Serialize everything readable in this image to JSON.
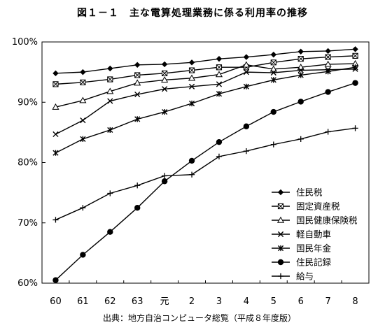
{
  "title": "図１－１　主な電算処理業務に係る利用率の推移",
  "source": "出典：地方自治コンピュータ総覧（平成８年度版）",
  "chart_data": {
    "type": "line",
    "categories": [
      "60",
      "61",
      "62",
      "63",
      "元",
      "2",
      "3",
      "4",
      "5",
      "6",
      "7",
      "8"
    ],
    "yticks": [
      "60%",
      "70%",
      "80%",
      "90%",
      "100%"
    ],
    "ylim": [
      60,
      100
    ],
    "ytick_values": [
      60,
      70,
      80,
      90,
      100
    ],
    "grid": false,
    "legend_position": "right",
    "series": [
      {
        "name": "住民税",
        "marker": "diamond",
        "values": [
          94.8,
          95.0,
          95.6,
          96.2,
          96.3,
          96.6,
          97.2,
          97.5,
          97.9,
          98.4,
          98.5,
          98.8
        ]
      },
      {
        "name": "固定資産税",
        "marker": "square-x",
        "values": [
          93.0,
          93.3,
          93.8,
          94.5,
          94.8,
          95.3,
          95.8,
          95.8,
          96.6,
          97.2,
          97.5,
          97.7
        ]
      },
      {
        "name": "国民健康保険税",
        "marker": "triangle",
        "values": [
          89.2,
          90.3,
          91.8,
          93.2,
          93.7,
          94.0,
          94.6,
          96.2,
          95.5,
          95.8,
          96.3,
          96.4
        ]
      },
      {
        "name": "軽自動車",
        "marker": "x",
        "values": [
          84.7,
          87.0,
          90.2,
          91.3,
          92.2,
          92.6,
          93.0,
          95.0,
          94.9,
          95.3,
          95.4,
          95.5
        ]
      },
      {
        "name": "国民年金",
        "marker": "asterisk",
        "values": [
          81.6,
          83.9,
          85.4,
          87.2,
          88.4,
          89.8,
          91.4,
          92.6,
          93.7,
          94.5,
          95.1,
          95.8
        ]
      },
      {
        "name": "住民記録",
        "marker": "circle",
        "values": [
          60.5,
          64.7,
          68.5,
          72.5,
          76.9,
          80.3,
          83.4,
          86.0,
          88.4,
          90.1,
          91.7,
          93.2
        ]
      },
      {
        "name": "給与",
        "marker": "plus",
        "values": [
          70.5,
          72.5,
          74.9,
          76.2,
          77.8,
          78.0,
          81.0,
          81.9,
          83.0,
          83.9,
          85.1,
          85.7
        ]
      }
    ]
  }
}
